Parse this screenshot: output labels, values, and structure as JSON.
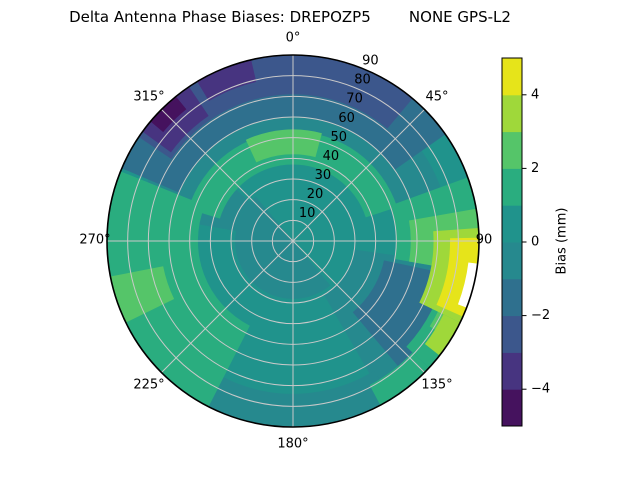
{
  "title": "Delta Antenna Phase Biases: DREPOZP5        NONE GPS-L2",
  "chart_data": {
    "type": "heatmap",
    "projection": "polar",
    "title": "Delta Antenna Phase Biases: DREPOZP5        NONE GPS-L2",
    "value_label": "Bias (mm)",
    "value_range": [
      -5,
      5
    ],
    "radial_range": [
      0,
      90
    ],
    "radial_ticks": [
      10,
      20,
      30,
      40,
      50,
      60,
      70,
      80,
      90
    ],
    "angular_ticks_deg": [
      0,
      45,
      90,
      135,
      180,
      225,
      270,
      315
    ],
    "angular_tick_labels": [
      "0°",
      "45°",
      "90",
      "135°",
      "180°",
      "225°",
      "270°",
      "315°"
    ],
    "grid": true,
    "grid_color": "#c9c9c9",
    "outline_color": "#000000",
    "colorbar": {
      "label": "Bias (mm)",
      "ticks": [
        4,
        2,
        0,
        -2,
        -4
      ],
      "tick_labels": [
        "4",
        "2",
        "0",
        "−2",
        "−4"
      ],
      "levels": [
        {
          "range": [
            -5,
            -4
          ],
          "color": "#45125e"
        },
        {
          "range": [
            -4,
            -3
          ],
          "color": "#473480"
        },
        {
          "range": [
            -3,
            -2
          ],
          "color": "#3c578c"
        },
        {
          "range": [
            -2,
            -1
          ],
          "color": "#2f708e"
        },
        {
          "range": [
            -1,
            0
          ],
          "color": "#26898e"
        },
        {
          "range": [
            0,
            1
          ],
          "color": "#20938c"
        },
        {
          "range": [
            1,
            2
          ],
          "color": "#2aad7f"
        },
        {
          "range": [
            2,
            3
          ],
          "color": "#55c569"
        },
        {
          "range": [
            3,
            4
          ],
          "color": "#9fd83a"
        },
        {
          "range": [
            4,
            5
          ],
          "color": "#e6e41a"
        }
      ]
    },
    "features": [
      "Background bias mostly 0 to +1 mm (teal) with -1 to 0 mm swirls near center and bottom rim",
      "Negative band -2 to -4 mm along outer edge from ~295° through 0° to ~55° azimuth",
      "Darkest patch approaching -5 mm near 310°-325° azimuth at radius 75-90",
      "Positive hotspot +4 to +5 mm at outer edge near 90°-115° azimuth",
      "White no-data sliver at rim near 97°-111° azimuth",
      "Green +1 to +3 mm band at radius ~38-55 arcing over the top, and broad green region 207°-292°",
      "Blue-teal -1 to -2 mm blob around 102°-140° azimuth at radius 45-80"
    ],
    "base_level": {
      "range": [
        0,
        1
      ],
      "color": "#20938c"
    },
    "regions": [
      {
        "level": "-1to0",
        "color": "#26898e",
        "az": [
          250,
          430
        ],
        "r": [
          50,
          76
        ]
      },
      {
        "level": "-1to0",
        "color": "#26898e",
        "az": [
          98,
          150
        ],
        "r": [
          30,
          90
        ]
      },
      {
        "level": "-1to0",
        "color": "#26898e",
        "az": [
          148,
          207
        ],
        "r": [
          74,
          90
        ]
      },
      {
        "level": "-1to0",
        "color": "#26898e",
        "az": [
          140,
          320
        ],
        "r": [
          0,
          28
        ]
      },
      {
        "level": "-1to0",
        "color": "#26898e",
        "az": [
          280,
          312
        ],
        "r": [
          28,
          58
        ]
      },
      {
        "level": "-2to-1",
        "color": "#2f708e",
        "az": [
          293,
          415
        ],
        "r": [
          60,
          90
        ]
      },
      {
        "level": "-2to-1",
        "color": "#2f708e",
        "az": [
          102,
          140
        ],
        "r": [
          45,
          80
        ]
      },
      {
        "level": "-3to-2",
        "color": "#3c578c",
        "az": [
          304,
          400
        ],
        "r": [
          71,
          90
        ]
      },
      {
        "level": "-4to-3",
        "color": "#473480",
        "az": [
          306,
          326
        ],
        "r": [
          73,
          90
        ]
      },
      {
        "level": "-4to-3",
        "color": "#473480",
        "az": [
          329,
          347
        ],
        "r": [
          79,
          90
        ]
      },
      {
        "level": "-5to-4",
        "color": "#45125e",
        "az": [
          310,
          321
        ],
        "r": [
          82,
          90
        ]
      },
      {
        "level": "1to2",
        "color": "#2aad7f",
        "az": [
          207,
          292
        ],
        "r": [
          46,
          90
        ]
      },
      {
        "level": "1to2",
        "color": "#2aad7f",
        "az": [
          287,
          432
        ],
        "r": [
          37,
          53
        ]
      },
      {
        "level": "1to2",
        "color": "#2aad7f",
        "az": [
          70,
          100
        ],
        "r": [
          50,
          90
        ]
      },
      {
        "level": "1to2",
        "color": "#2aad7f",
        "az": [
          100,
          133
        ],
        "r": [
          75,
          90
        ]
      },
      {
        "level": "1to2",
        "color": "#2aad7f",
        "az": [
          133,
          152
        ],
        "r": [
          79,
          90
        ]
      },
      {
        "level": "2to3",
        "color": "#55c569",
        "az": [
          80,
          100
        ],
        "r": [
          57,
          90
        ]
      },
      {
        "level": "2to3",
        "color": "#55c569",
        "az": [
          100,
          122
        ],
        "r": [
          78,
          90
        ]
      },
      {
        "level": "2to3",
        "color": "#55c569",
        "az": [
          244,
          259
        ],
        "r": [
          64,
          90
        ]
      },
      {
        "level": "2to3",
        "color": "#55c569",
        "az": [
          335,
          375
        ],
        "r": [
          42,
          54
        ]
      },
      {
        "level": "3to4",
        "color": "#9fd83a",
        "az": [
          86,
          116
        ],
        "r": [
          68,
          90
        ]
      },
      {
        "level": "3to4",
        "color": "#9fd83a",
        "az": [
          116,
          128
        ],
        "r": [
          81,
          90
        ]
      },
      {
        "level": "4to5",
        "color": "#e6e41a",
        "az": [
          89,
          114
        ],
        "r": [
          76,
          90
        ]
      },
      {
        "level": "nodata",
        "color": "#ffffff",
        "az": [
          97,
          111
        ],
        "r": [
          85.5,
          90
        ]
      }
    ]
  }
}
